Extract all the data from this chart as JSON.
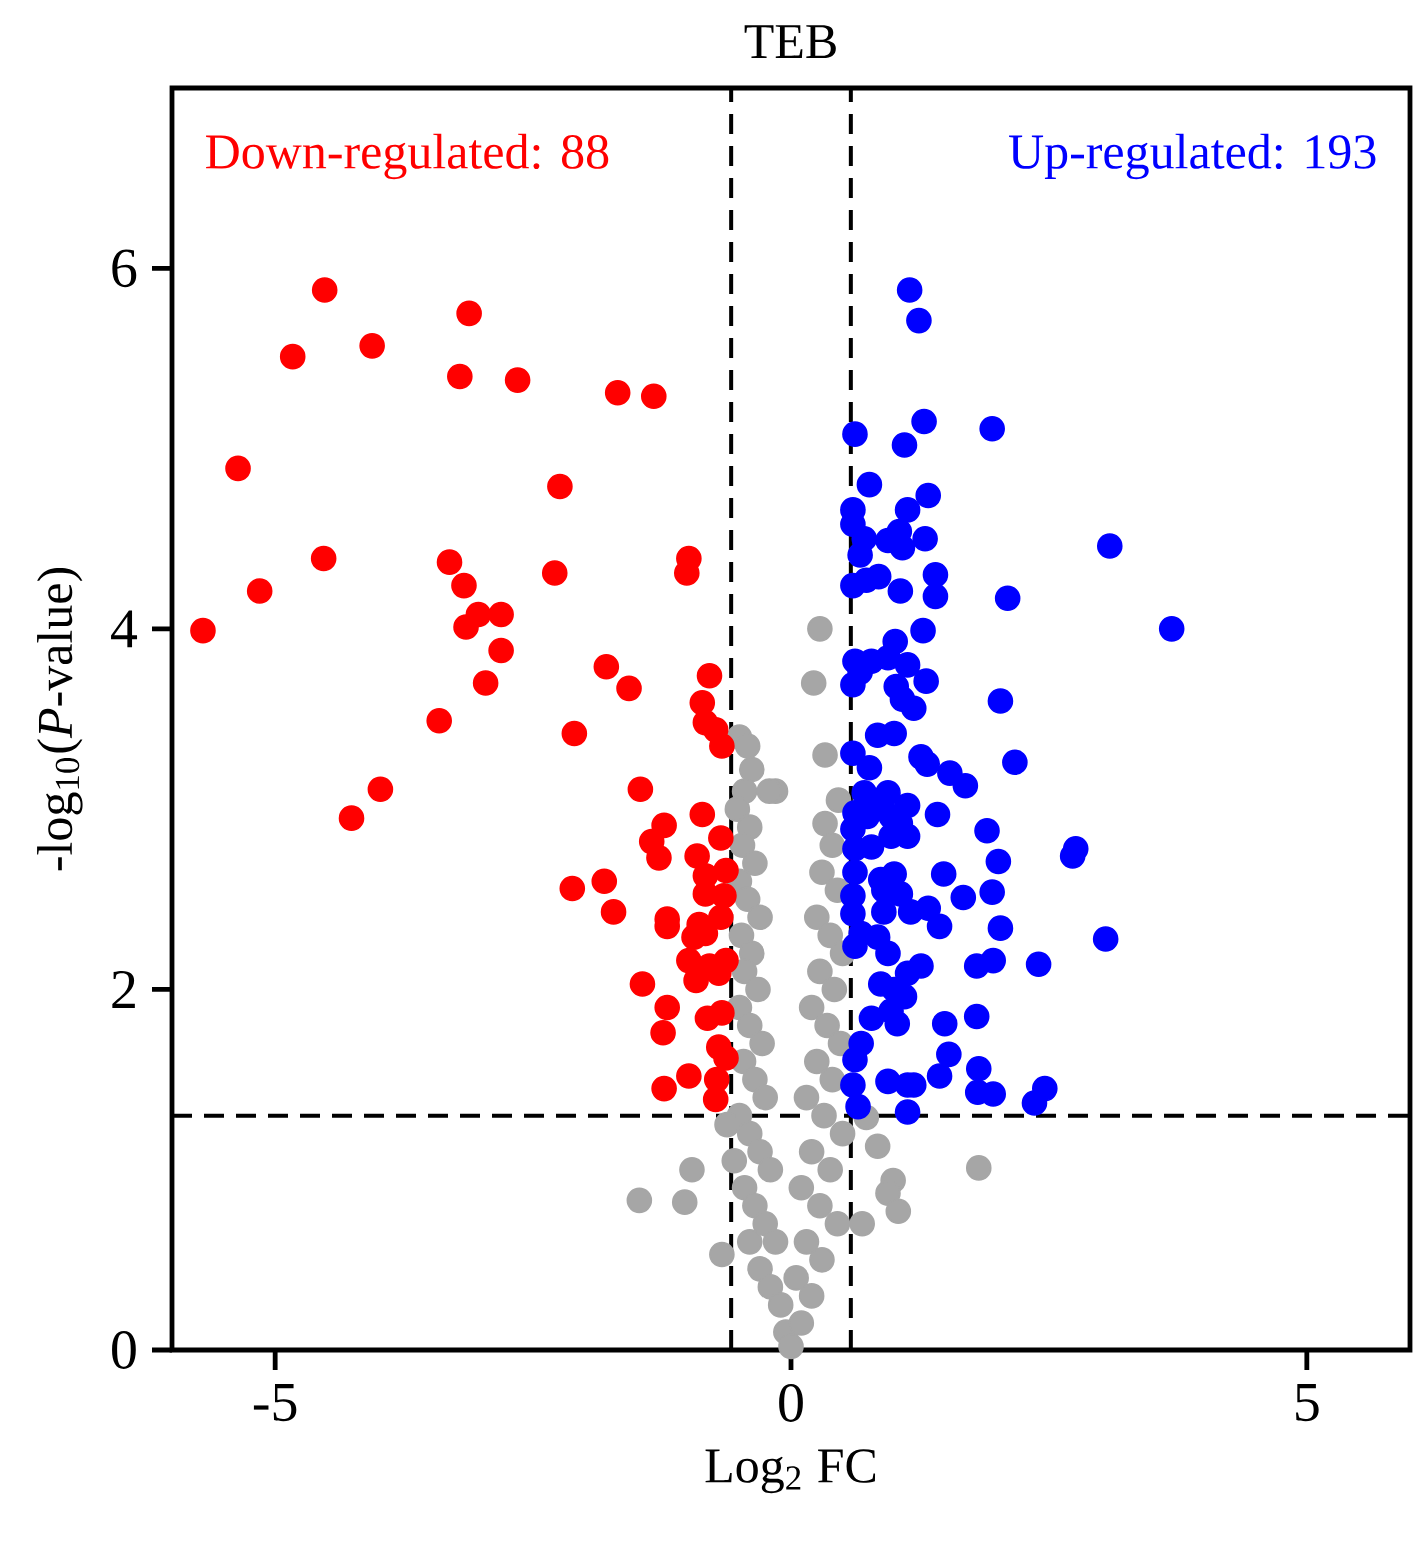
{
  "chart_data": {
    "type": "scatter",
    "title": "TEB",
    "xlabel": "Log$_{2}$ FC",
    "ylabel": "-log$_{10}$(*P*-value)",
    "xlim": [
      -6,
      6
    ],
    "ylim": [
      0,
      7
    ],
    "xticks": [
      -5,
      0,
      5
    ],
    "yticks": [
      0,
      2,
      4,
      6
    ],
    "grid": false,
    "marker": "circle",
    "series": [
      {
        "color": "#a6a6a6",
        "x": [
          -0.5,
          -0.42,
          -0.38,
          -0.45,
          -0.52,
          -0.4,
          -0.47,
          -0.35,
          -0.5,
          -0.42,
          -0.3,
          -0.48,
          -0.38,
          -0.45,
          -0.32,
          -0.5,
          -0.4,
          -0.28,
          -0.46,
          -0.35,
          -0.25,
          -0.5,
          -0.4,
          -0.3,
          -0.55,
          -0.2,
          -0.45,
          -0.35,
          -0.25,
          -0.15,
          -0.4,
          -0.3,
          -0.2,
          -0.1,
          -0.05,
          0.0,
          0.28,
          0.22,
          0.33,
          0.46,
          0.33,
          0.4,
          0.3,
          0.45,
          0.25,
          0.38,
          0.5,
          0.28,
          0.42,
          0.2,
          0.35,
          0.48,
          0.25,
          0.4,
          0.15,
          0.32,
          0.5,
          0.2,
          0.38,
          0.1,
          0.28,
          0.45,
          0.15,
          0.3,
          0.05,
          0.2,
          0.1,
          -0.15,
          -0.21,
          -1.47,
          -1.03,
          -0.96,
          -0.67,
          -0.62,
          1.82,
          0.84,
          0.99,
          0.94,
          0.73,
          1.04,
          0.69
        ],
        "values": [
          3.4,
          3.35,
          3.22,
          3.1,
          3.0,
          2.9,
          2.8,
          2.7,
          2.6,
          2.5,
          2.4,
          2.3,
          2.2,
          2.1,
          2.0,
          1.9,
          1.8,
          1.7,
          1.6,
          1.5,
          1.4,
          1.3,
          1.2,
          1.1,
          1.05,
          1.0,
          0.9,
          0.8,
          0.7,
          0.6,
          0.6,
          0.45,
          0.35,
          0.25,
          0.1,
          0.02,
          4.0,
          3.7,
          3.3,
          3.05,
          2.92,
          2.8,
          2.65,
          2.55,
          2.4,
          2.3,
          2.2,
          2.1,
          2.0,
          1.9,
          1.8,
          1.7,
          1.6,
          1.5,
          1.4,
          1.3,
          1.2,
          1.1,
          1.0,
          0.9,
          0.8,
          0.7,
          0.6,
          0.5,
          0.4,
          0.3,
          0.15,
          3.1,
          3.1,
          0.83,
          0.82,
          1.0,
          0.53,
          1.25,
          1.01,
          1.13,
          0.94,
          0.87,
          1.29,
          0.77,
          0.7
        ]
      },
      {
        "name": "Down-regulated: 88",
        "color": "#ff0000",
        "x": [
          -4.52,
          -3.12,
          -4.83,
          -4.06,
          -3.21,
          -2.65,
          -1.68,
          -1.33,
          -5.36,
          -2.24,
          -4.53,
          -3.31,
          -3.17,
          -2.29,
          -0.99,
          -1.01,
          -5.15,
          -5.7,
          -3.03,
          -3.15,
          -2.81,
          -2.81,
          -2.96,
          -1.79,
          -1.57,
          -3.41,
          -2.1,
          -0.79,
          -0.86,
          -0.83,
          -0.73,
          -0.67,
          -3.98,
          -4.26,
          -1.46,
          -1.23,
          -0.86,
          -1.35,
          -1.28,
          -0.91,
          -0.68,
          -2.12,
          -1.81,
          -1.72,
          -0.83,
          -0.83,
          -0.63,
          -0.65,
          -0.68,
          -1.2,
          -1.2,
          -0.89,
          -0.83,
          -0.94,
          -0.99,
          -0.79,
          -0.92,
          -0.7,
          -0.63,
          -1.44,
          -1.2,
          -1.24,
          -0.81,
          -0.67,
          -0.7,
          -0.63,
          -0.99,
          -1.23,
          -0.72,
          -0.73
        ],
        "values": [
          5.88,
          5.75,
          5.51,
          5.57,
          5.4,
          5.38,
          5.31,
          5.29,
          4.89,
          4.79,
          4.39,
          4.37,
          4.24,
          4.31,
          4.39,
          4.31,
          4.21,
          3.99,
          4.08,
          4.01,
          4.08,
          3.88,
          3.7,
          3.79,
          3.67,
          3.49,
          3.42,
          3.74,
          3.59,
          3.48,
          3.44,
          3.35,
          3.11,
          2.95,
          3.11,
          2.91,
          2.97,
          2.82,
          2.73,
          2.74,
          2.84,
          2.56,
          2.6,
          2.43,
          2.63,
          2.53,
          2.66,
          2.52,
          2.4,
          2.39,
          2.35,
          2.36,
          2.31,
          2.29,
          2.16,
          2.13,
          2.05,
          2.09,
          2.16,
          2.03,
          1.9,
          1.76,
          1.84,
          1.87,
          1.68,
          1.62,
          1.52,
          1.45,
          1.5,
          1.39
        ]
      },
      {
        "name": "Up-regulated: 193",
        "color": "#0000ff",
        "x": [
          1.15,
          1.24,
          1.29,
          0.62,
          1.1,
          1.95,
          0.76,
          1.33,
          1.13,
          0.6,
          0.6,
          0.71,
          0.94,
          1.05,
          1.08,
          1.3,
          0.67,
          3.09,
          0.6,
          0.73,
          0.85,
          1.4,
          1.06,
          1.4,
          2.1,
          3.69,
          1.28,
          1.01,
          0.62,
          0.78,
          0.94,
          1.13,
          0.67,
          0.6,
          1.31,
          1.02,
          1.08,
          1.19,
          2.03,
          0.84,
          1.0,
          0.6,
          0.76,
          1.26,
          1.32,
          1.54,
          1.69,
          2.17,
          0.71,
          0.94,
          0.81,
          1.13,
          0.62,
          0.74,
          0.97,
          1.06,
          1.42,
          0.6,
          0.62,
          0.78,
          0.97,
          1.13,
          1.9,
          2.76,
          2.73,
          2.01,
          0.62,
          0.87,
          1.0,
          1.48,
          0.9,
          1.06,
          1.95,
          1.67,
          0.6,
          0.6,
          0.9,
          1.16,
          1.33,
          1.44,
          2.03,
          3.05,
          0.68,
          0.84,
          0.94,
          0.62,
          1.26,
          1.13,
          1.8,
          1.96,
          2.4,
          0.87,
          1.0,
          1.1,
          0.97,
          0.78,
          1.03,
          1.49,
          1.8,
          0.68,
          0.62,
          1.53,
          1.82,
          0.6,
          0.94,
          1.13,
          1.19,
          1.44,
          1.81,
          1.96,
          2.46,
          2.36,
          0.65,
          1.13
        ],
        "values": [
          5.88,
          5.71,
          5.15,
          5.08,
          5.02,
          5.11,
          4.8,
          4.74,
          4.66,
          4.66,
          4.58,
          4.5,
          4.49,
          4.54,
          4.45,
          4.5,
          4.41,
          4.46,
          4.24,
          4.27,
          4.29,
          4.3,
          4.21,
          4.18,
          4.17,
          4.0,
          3.99,
          3.93,
          3.82,
          3.82,
          3.84,
          3.8,
          3.76,
          3.69,
          3.71,
          3.68,
          3.61,
          3.56,
          3.6,
          3.41,
          3.42,
          3.31,
          3.23,
          3.29,
          3.25,
          3.2,
          3.13,
          3.26,
          3.09,
          3.09,
          3.04,
          3.02,
          2.98,
          2.96,
          2.96,
          2.92,
          2.97,
          2.89,
          2.78,
          2.79,
          2.85,
          2.85,
          2.88,
          2.78,
          2.74,
          2.71,
          2.65,
          2.61,
          2.64,
          2.64,
          2.55,
          2.53,
          2.54,
          2.51,
          2.52,
          2.42,
          2.43,
          2.43,
          2.45,
          2.35,
          2.34,
          2.28,
          2.31,
          2.29,
          2.2,
          2.24,
          2.13,
          2.09,
          2.13,
          2.16,
          2.14,
          2.03,
          2.0,
          1.96,
          1.88,
          1.84,
          1.81,
          1.81,
          1.85,
          1.7,
          1.61,
          1.64,
          1.56,
          1.47,
          1.49,
          1.47,
          1.47,
          1.52,
          1.43,
          1.42,
          1.45,
          1.37,
          1.35,
          1.32
        ]
      }
    ],
    "ref_lines": [
      {
        "axis": "x",
        "value": -0.58,
        "color": "#000000",
        "line_style": "dashed"
      },
      {
        "axis": "x",
        "value": 0.58,
        "color": "#000000",
        "line_style": "dashed"
      },
      {
        "axis": "y",
        "value": 1.3,
        "color": "#000000",
        "line_style": "dashed"
      }
    ]
  }
}
